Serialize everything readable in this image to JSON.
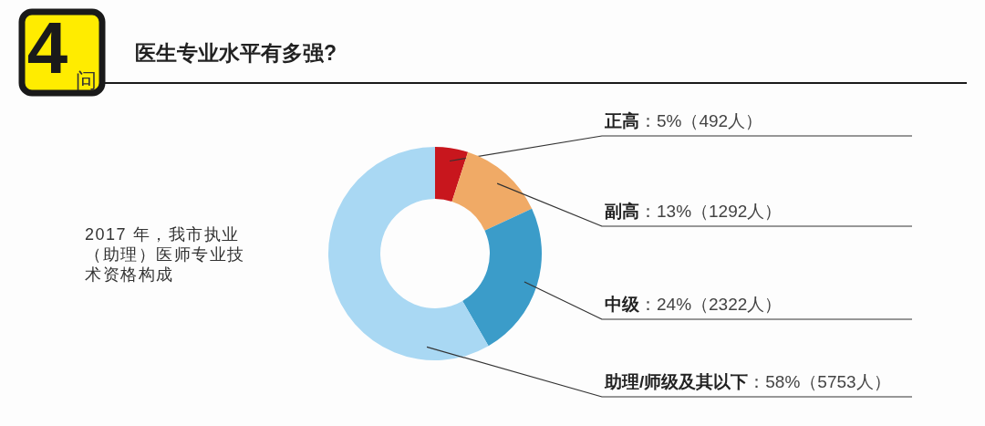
{
  "chart_data": {
    "type": "donut",
    "title": "医生专业水平有多强?",
    "categories": [
      "正高",
      "副高",
      "中级",
      "助理/师级及其以下"
    ],
    "values": [
      492,
      1292,
      2322,
      5753
    ],
    "colors": [
      "#c8161d",
      "#f0aa66",
      "#3b9cc9",
      "#a9d8f3"
    ],
    "value_labels": [
      "：5%（492人）",
      "：13%（1292人）",
      "：24%（2322人）",
      "：58%（5753人）"
    ],
    "annotations": [
      "4问",
      "2017 年，我市执业（助理）医师专业技术资格构成"
    ]
  }
}
